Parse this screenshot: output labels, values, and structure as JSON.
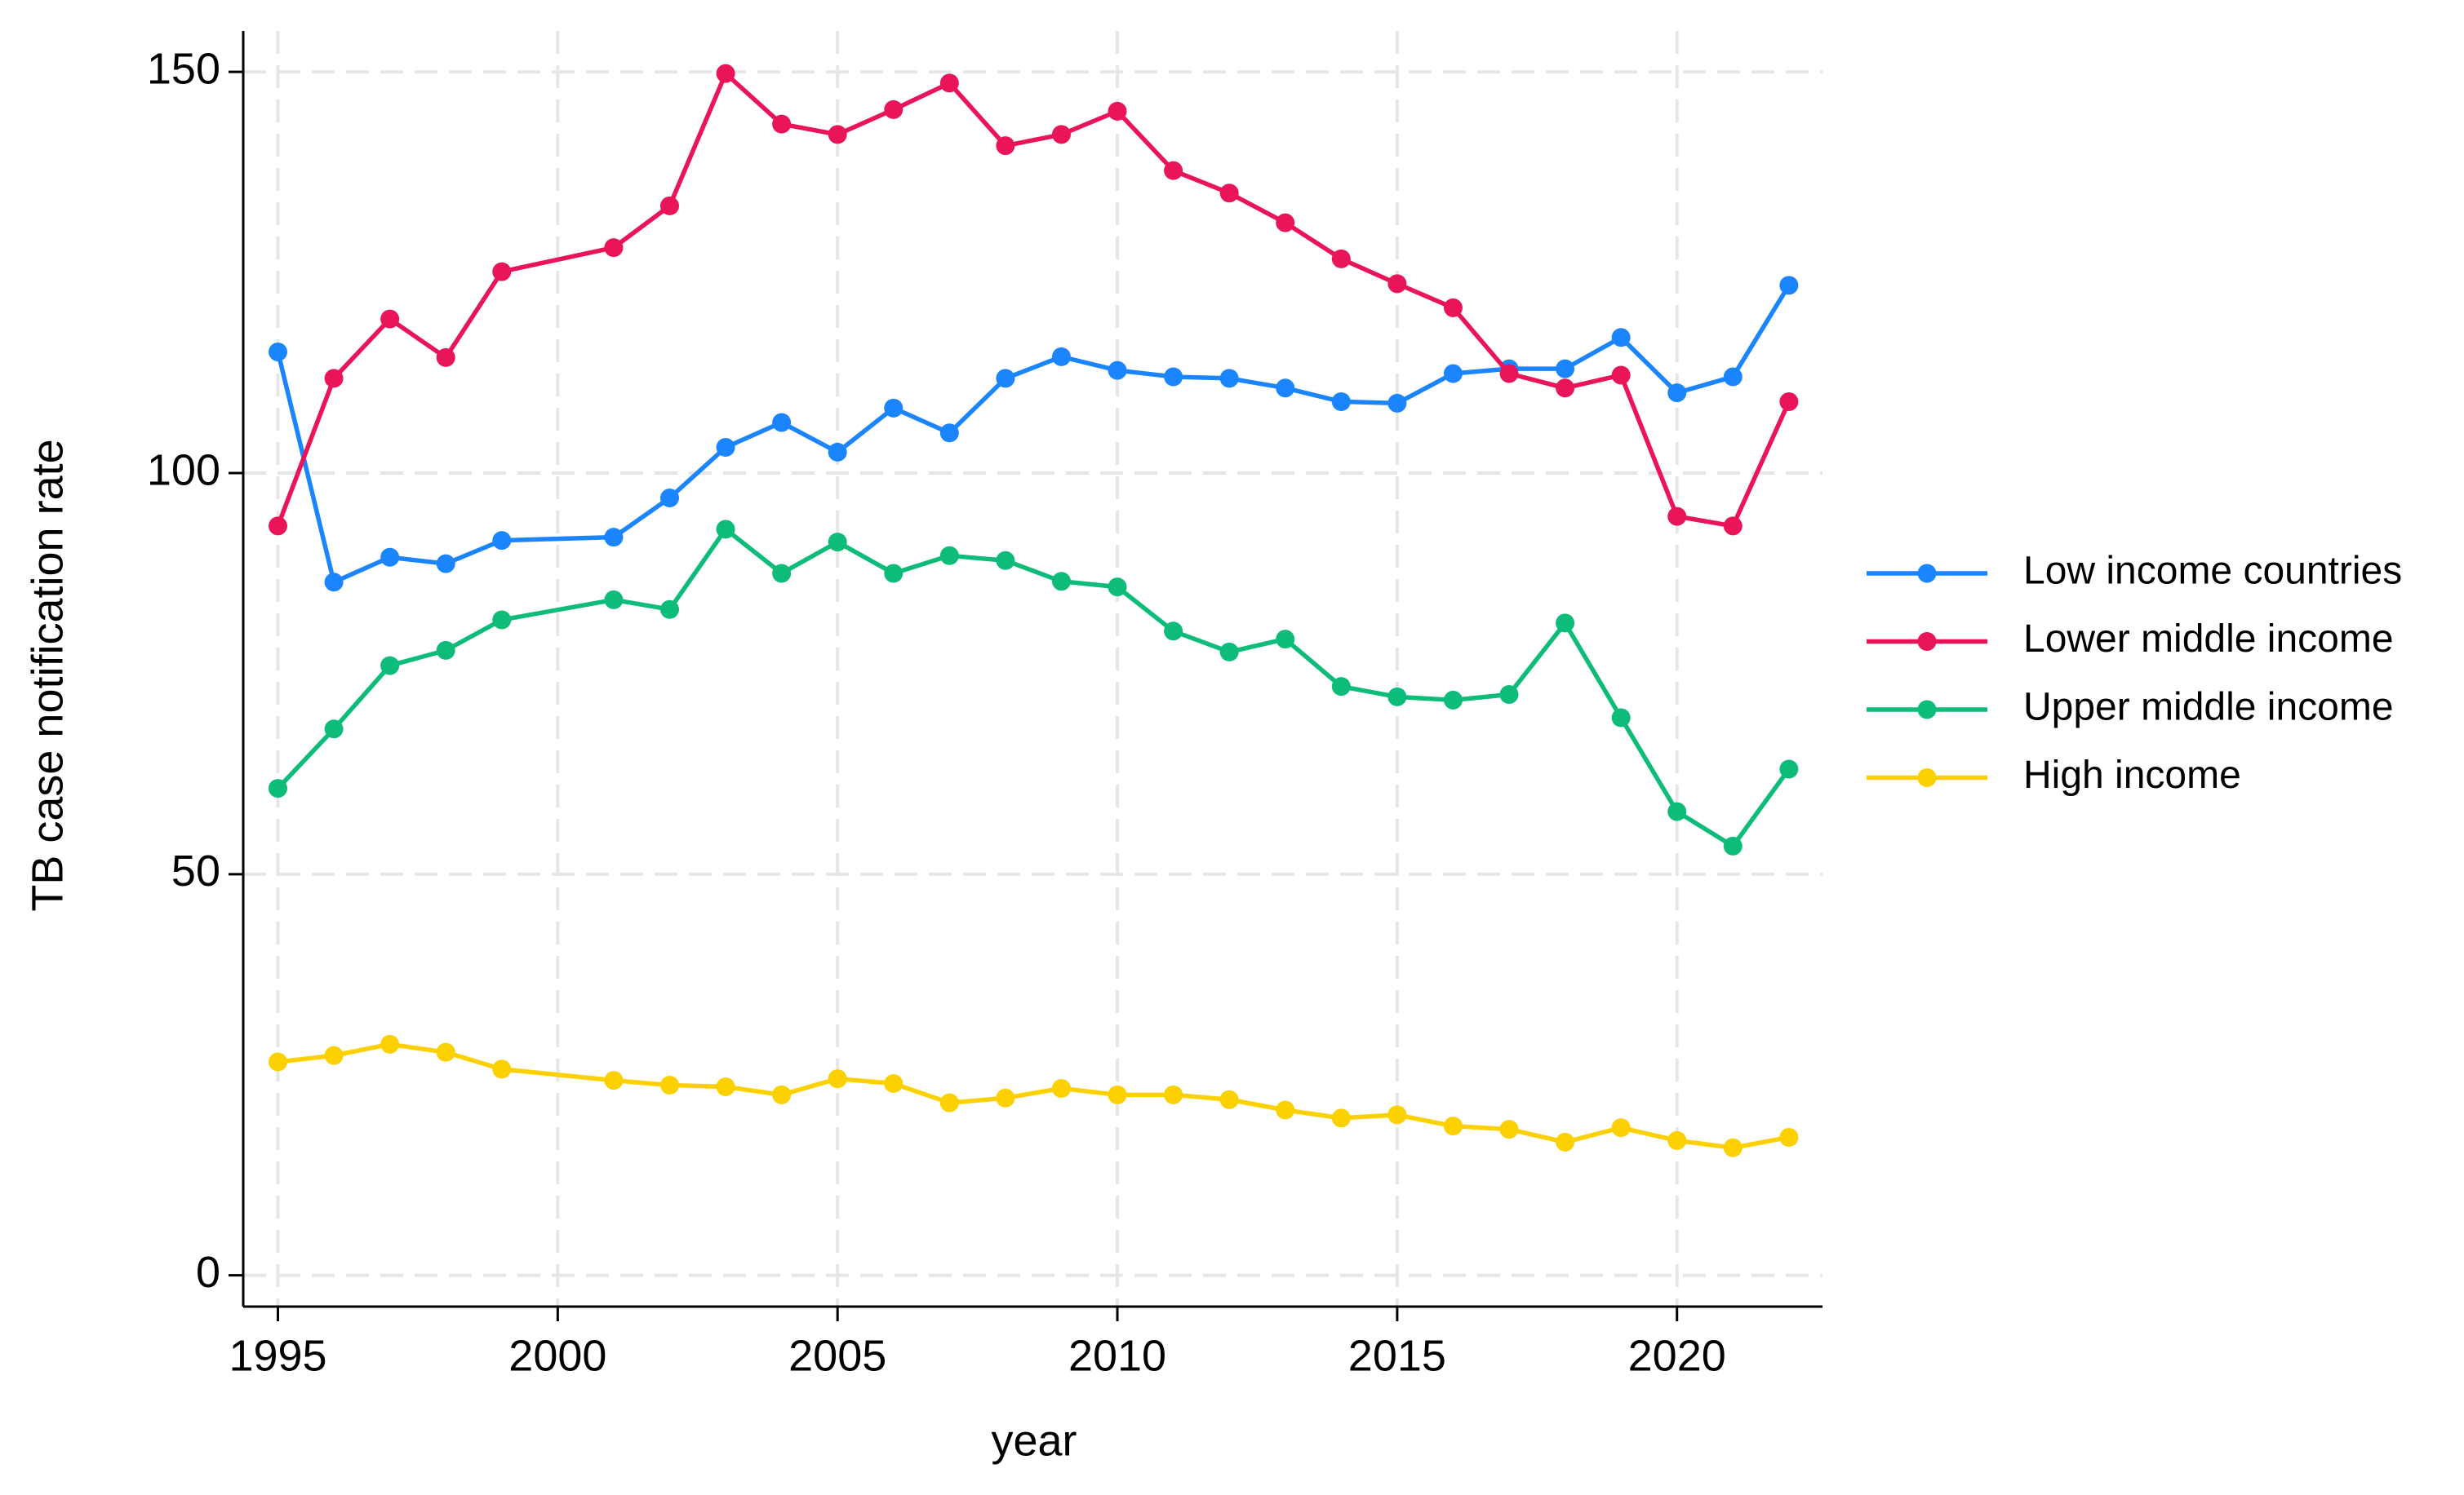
{
  "chart_data": {
    "type": "line",
    "x_label": "year",
    "y_label": "TB case notification rate",
    "x": [
      1995,
      1996,
      1997,
      1998,
      1999,
      2001,
      2002,
      2003,
      2004,
      2005,
      2006,
      2007,
      2008,
      2009,
      2010,
      2011,
      2012,
      2013,
      2014,
      2015,
      2016,
      2017,
      2018,
      2019,
      2020,
      2021,
      2022
    ],
    "series": [
      {
        "name": "Low income countries",
        "color": "#1a85ff",
        "values": [
          115.1,
          86.4,
          89.5,
          88.7,
          91.6,
          92.0,
          96.9,
          103.2,
          106.3,
          102.6,
          108.1,
          105.0,
          111.8,
          114.5,
          112.8,
          112.0,
          111.8,
          110.6,
          108.9,
          108.7,
          112.4,
          113.0,
          113.0,
          116.9,
          110.0,
          112.0,
          123.4
        ]
      },
      {
        "name": "Lower middle income",
        "color": "#ea1459",
        "values": [
          93.4,
          111.8,
          119.2,
          114.4,
          125.1,
          128.1,
          133.3,
          149.8,
          143.5,
          142.2,
          145.3,
          148.6,
          140.8,
          142.2,
          145.1,
          137.7,
          134.9,
          131.2,
          126.7,
          123.6,
          120.6,
          112.4,
          110.6,
          112.2,
          94.6,
          93.4,
          108.9
        ]
      },
      {
        "name": "Upper middle income",
        "color": "#0ebc7a",
        "values": [
          60.7,
          68.1,
          76.0,
          77.9,
          81.7,
          84.2,
          83.0,
          93.0,
          87.5,
          91.4,
          87.5,
          89.7,
          89.1,
          86.5,
          85.8,
          80.3,
          77.7,
          79.3,
          73.4,
          72.1,
          71.7,
          72.4,
          81.3,
          69.5,
          57.8,
          53.5,
          63.1
        ]
      },
      {
        "name": "High income",
        "color": "#fdd000",
        "values": [
          26.6,
          27.4,
          28.8,
          27.8,
          25.7,
          24.3,
          23.7,
          23.5,
          22.5,
          24.5,
          23.9,
          21.5,
          22.1,
          23.3,
          22.5,
          22.5,
          21.9,
          20.6,
          19.6,
          20.0,
          18.6,
          18.2,
          16.6,
          18.4,
          16.8,
          15.9,
          17.2
        ]
      }
    ],
    "xlim": [
      1994.38,
      2022.6
    ],
    "xticks": [
      1995,
      2000,
      2005,
      2010,
      2015,
      2020
    ],
    "ylim": [
      -3.9,
      155.1
    ],
    "yticks": [
      0,
      50,
      100,
      150
    ],
    "grid": true,
    "legend": "right"
  }
}
